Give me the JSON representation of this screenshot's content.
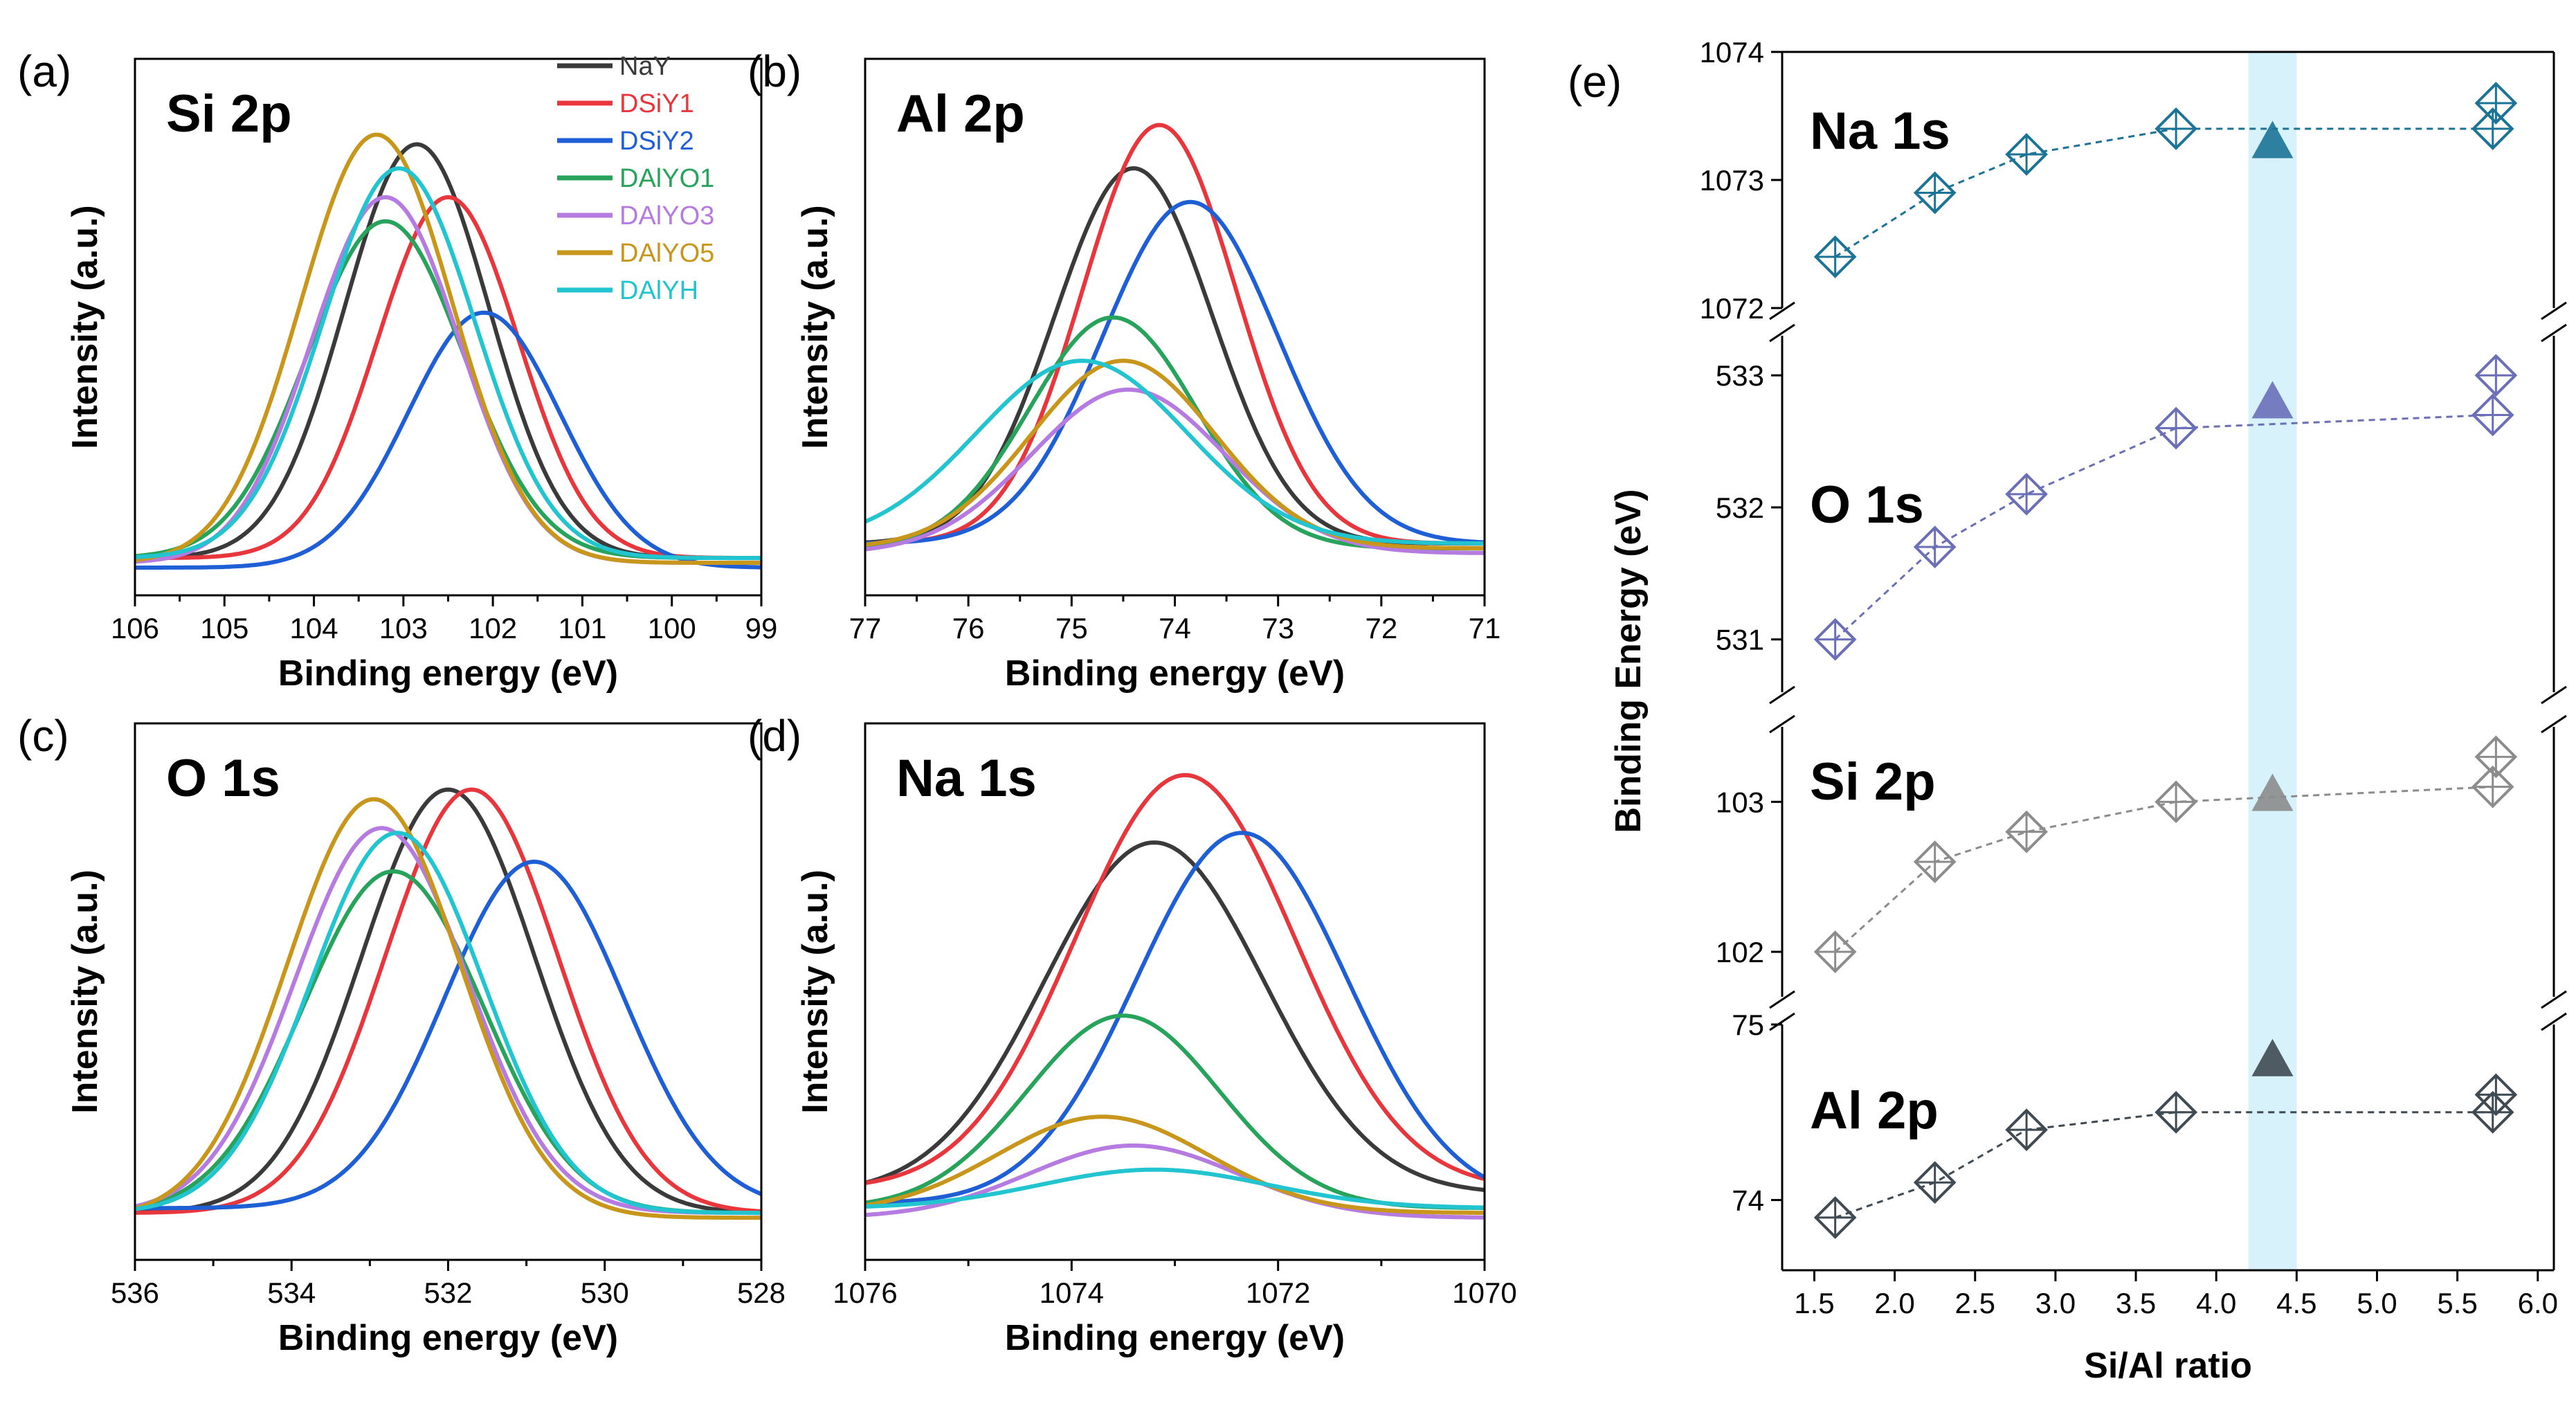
{
  "chart_data": [
    {
      "id": "a",
      "type": "line",
      "panel_label": "(a)",
      "title": "Si 2p",
      "xlabel": "Binding energy (eV)",
      "ylabel": "Intensity (a.u.)",
      "xlim": [
        106,
        99
      ],
      "xticks": [
        106,
        105,
        104,
        103,
        102,
        101,
        100,
        99
      ],
      "legend": [
        "NaY",
        "DSiY1",
        "DSiY2",
        "DAlYO1",
        "DAlYO3",
        "DAlYO5",
        "DAlYH"
      ],
      "series": [
        {
          "name": "NaY",
          "color": "#3a3a3a",
          "center": 102.85,
          "fwhm": 1.9,
          "height": 0.86,
          "base": 0.02
        },
        {
          "name": "DSiY1",
          "color": "#e8363d",
          "center": 102.5,
          "fwhm": 1.85,
          "height": 0.75,
          "base": 0.02
        },
        {
          "name": "DSiY2",
          "color": "#1f5fd6",
          "center": 102.1,
          "fwhm": 2.0,
          "height": 0.53,
          "base": 0.0
        },
        {
          "name": "DAlYO1",
          "color": "#27a35c",
          "center": 103.2,
          "fwhm": 2.05,
          "height": 0.7,
          "base": 0.02
        },
        {
          "name": "DAlYO3",
          "color": "#b57be0",
          "center": 103.2,
          "fwhm": 1.95,
          "height": 0.76,
          "base": 0.01
        },
        {
          "name": "DAlYO5",
          "color": "#c8961a",
          "center": 103.3,
          "fwhm": 2.0,
          "height": 0.89,
          "base": 0.01
        },
        {
          "name": "DAlYH",
          "color": "#22c4cf",
          "center": 103.05,
          "fwhm": 2.0,
          "height": 0.81,
          "base": 0.02
        }
      ]
    },
    {
      "id": "b",
      "type": "line",
      "panel_label": "(b)",
      "title": "Al 2p",
      "xlabel": "Binding energy (eV)",
      "ylabel": "Intensity (a.u.)",
      "xlim": [
        77,
        71
      ],
      "xticks": [
        77,
        76,
        75,
        74,
        73,
        72,
        71
      ],
      "series": [
        {
          "name": "NaY",
          "color": "#3a3a3a",
          "center": 74.4,
          "fwhm": 1.8,
          "height": 0.78,
          "base": 0.05
        },
        {
          "name": "DSiY1",
          "color": "#e8363d",
          "center": 74.15,
          "fwhm": 1.75,
          "height": 0.87,
          "base": 0.05
        },
        {
          "name": "DSiY2",
          "color": "#1f5fd6",
          "center": 73.85,
          "fwhm": 2.0,
          "height": 0.71,
          "base": 0.05
        },
        {
          "name": "DAlYO1",
          "color": "#27a35c",
          "center": 74.6,
          "fwhm": 1.9,
          "height": 0.48,
          "base": 0.04
        },
        {
          "name": "DAlYO3",
          "color": "#b57be0",
          "center": 74.45,
          "fwhm": 2.2,
          "height": 0.34,
          "base": 0.03
        },
        {
          "name": "DAlYO5",
          "color": "#c8961a",
          "center": 74.5,
          "fwhm": 2.1,
          "height": 0.39,
          "base": 0.04
        },
        {
          "name": "DAlYH",
          "color": "#22c4cf",
          "center": 74.9,
          "fwhm": 2.4,
          "height": 0.38,
          "base": 0.05
        }
      ]
    },
    {
      "id": "c",
      "type": "line",
      "panel_label": "(c)",
      "title": "O 1s",
      "xlabel": "Binding energy (eV)",
      "ylabel": "Intensity (a.u.)",
      "xlim": [
        536,
        528
      ],
      "xticks": [
        536,
        534,
        532,
        530,
        528
      ],
      "series": [
        {
          "name": "NaY",
          "color": "#3a3a3a",
          "center": 532.0,
          "fwhm": 2.6,
          "height": 0.88,
          "base": 0.04
        },
        {
          "name": "DSiY1",
          "color": "#e8363d",
          "center": 531.7,
          "fwhm": 2.6,
          "height": 0.88,
          "base": 0.04
        },
        {
          "name": "DSiY2",
          "color": "#1f5fd6",
          "center": 530.9,
          "fwhm": 2.7,
          "height": 0.72,
          "base": 0.05
        },
        {
          "name": "DAlYO1",
          "color": "#27a35c",
          "center": 532.7,
          "fwhm": 2.7,
          "height": 0.71,
          "base": 0.04
        },
        {
          "name": "DAlYO3",
          "color": "#b57be0",
          "center": 532.85,
          "fwhm": 2.6,
          "height": 0.8,
          "base": 0.04
        },
        {
          "name": "DAlYO5",
          "color": "#c8961a",
          "center": 532.95,
          "fwhm": 2.6,
          "height": 0.87,
          "base": 0.03
        },
        {
          "name": "DAlYH",
          "color": "#22c4cf",
          "center": 532.65,
          "fwhm": 2.6,
          "height": 0.79,
          "base": 0.04
        }
      ]
    },
    {
      "id": "d",
      "type": "line",
      "panel_label": "(d)",
      "title": "Na 1s",
      "xlabel": "Binding energy (eV)",
      "ylabel": "Intensity (a.u.)",
      "xlim": [
        1076,
        1070
      ],
      "xticks": [
        1076,
        1074,
        1072,
        1070
      ],
      "series": [
        {
          "name": "NaY",
          "color": "#3a3a3a",
          "center": 1073.2,
          "fwhm": 2.5,
          "height": 0.73,
          "base": 0.08
        },
        {
          "name": "DSiY1",
          "color": "#e8363d",
          "center": 1072.9,
          "fwhm": 2.5,
          "height": 0.86,
          "base": 0.09
        },
        {
          "name": "DSiY2",
          "color": "#1f5fd6",
          "center": 1072.35,
          "fwhm": 2.4,
          "height": 0.77,
          "base": 0.06
        },
        {
          "name": "DAlYO1",
          "color": "#27a35c",
          "center": 1073.5,
          "fwhm": 2.2,
          "height": 0.4,
          "base": 0.05
        },
        {
          "name": "DAlYO3",
          "color": "#b57be0",
          "center": 1073.4,
          "fwhm": 2.4,
          "height": 0.15,
          "base": 0.03
        },
        {
          "name": "DAlYO5",
          "color": "#c8961a",
          "center": 1073.7,
          "fwhm": 2.4,
          "height": 0.2,
          "base": 0.04
        },
        {
          "name": "DAlYH",
          "color": "#22c4cf",
          "center": 1073.2,
          "fwhm": 2.6,
          "height": 0.08,
          "base": 0.05
        }
      ]
    },
    {
      "id": "e",
      "type": "scatter",
      "panel_label": "(e)",
      "xlabel": "Si/Al ratio",
      "ylabel": "Binding Energy (eV)",
      "xlim": [
        1.3,
        6.1
      ],
      "xticks": [
        "1.5",
        "2.0",
        "2.5",
        "3.0",
        "3.5",
        "4.0",
        "4.5",
        "5.0",
        "5.5",
        "6.0"
      ],
      "highlight_x": [
        4.2,
        4.5
      ],
      "highlight_color": "#d8f2fb",
      "segments": [
        {
          "name": "Na 1s",
          "color": "#1b7396",
          "label_color": "#1b5f7a",
          "ylim": [
            1072,
            1074
          ],
          "yticks": [
            1072,
            1073,
            1074
          ],
          "x": [
            1.63,
            2.25,
            2.82,
            3.75,
            5.72,
            5.74
          ],
          "y": [
            1072.4,
            1072.9,
            1073.2,
            1073.4,
            1073.4,
            1073.6
          ],
          "triangle": [
            4.35,
            1073.3
          ]
        },
        {
          "name": "O 1s",
          "color": "#6a6fb8",
          "label_color": "#3f3f8a",
          "ylim": [
            530.6,
            533.3
          ],
          "yticks": [
            531,
            532,
            533
          ],
          "x": [
            1.63,
            2.25,
            2.82,
            3.75,
            5.72,
            5.74
          ],
          "y": [
            531.0,
            531.7,
            532.1,
            532.6,
            532.7,
            533.0
          ],
          "triangle": [
            4.35,
            532.8
          ]
        },
        {
          "name": "Si 2p",
          "color": "#8c8c8c",
          "label_color": "#8c8c8c",
          "ylim": [
            101.7,
            103.5
          ],
          "yticks": [
            102,
            103
          ],
          "x": [
            1.63,
            2.25,
            2.82,
            3.75,
            5.72,
            5.74
          ],
          "y": [
            102.0,
            102.6,
            102.8,
            103.0,
            103.1,
            103.3
          ],
          "triangle": [
            4.35,
            103.05
          ]
        },
        {
          "name": "Al 2p",
          "color": "#3f4a52",
          "label_color": "#3f4a52",
          "ylim": [
            73.6,
            75.0
          ],
          "yticks": [
            74,
            75
          ],
          "x": [
            1.63,
            2.25,
            2.82,
            3.75,
            5.72,
            5.74
          ],
          "y": [
            73.9,
            74.1,
            74.4,
            74.5,
            74.5,
            74.6
          ],
          "triangle": [
            4.35,
            74.8
          ]
        }
      ]
    }
  ]
}
